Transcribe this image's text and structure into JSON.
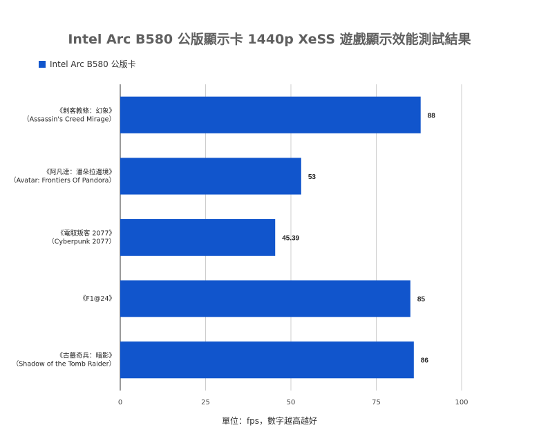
{
  "chart_data": {
    "type": "bar",
    "orientation": "horizontal",
    "title": "Intel Arc B580 公版顯示卡 1440p XeSS 遊戲顯示效能測試結果",
    "categories": [
      [
        "《刺客教條：幻象》",
        "（Assassin's Creed Mirage）"
      ],
      [
        "《阿凡達：潘朵拉邊境》",
        "（Avatar: Frontiers Of Pandora）"
      ],
      [
        "《電馭叛客 2077》",
        "（Cyberpunk 2077）"
      ],
      [
        "《F1@24》"
      ],
      [
        "《古墓奇兵：暗影》",
        "（Shadow of the Tomb Raider）"
      ]
    ],
    "series": [
      {
        "name": "Intel Arc B580 公版卡",
        "color": "#1155cc",
        "values": [
          88,
          53,
          45.39,
          85,
          86
        ]
      }
    ],
    "data_labels": [
      "88",
      "53",
      "45.39",
      "85",
      "86"
    ],
    "xlim": [
      0,
      100
    ],
    "xticks": [
      0,
      25,
      50,
      75,
      100
    ],
    "xlabel": "單位：fps，數字越高越好",
    "grid": true,
    "legend_position": "top-left"
  }
}
